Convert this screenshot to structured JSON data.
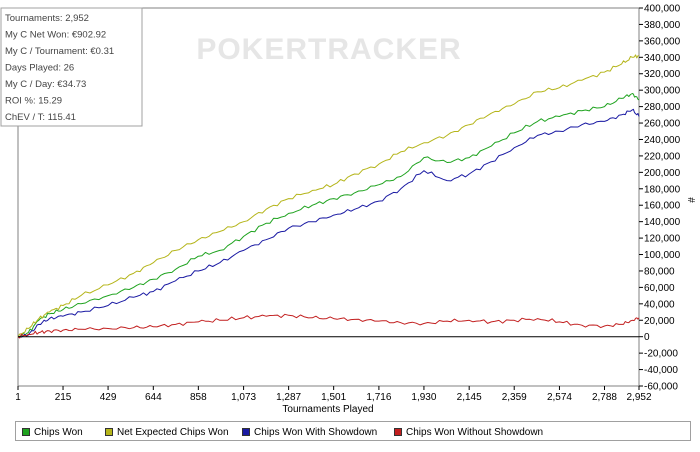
{
  "watermark": "POKERTRACKER",
  "stats_box": {
    "lines": [
      "Tournaments: 2,952",
      "My C Net Won: €902.92",
      "My C / Tournament: €0.31",
      "Days Played: 26",
      "My C / Day: €34.73",
      "ROI %: 15.29",
      "ChEV / T: 115.41"
    ]
  },
  "chart_data": {
    "type": "line",
    "xlabel": "Tournaments Played",
    "ylabel": "#",
    "xlim": [
      1,
      2952
    ],
    "ylim": [
      -60000,
      400000
    ],
    "x_ticks": [
      1,
      215,
      429,
      644,
      858,
      1073,
      1287,
      1501,
      1716,
      1930,
      2145,
      2359,
      2574,
      2788,
      2952
    ],
    "x_tick_labels": [
      "1",
      "215",
      "429",
      "644",
      "858",
      "1,073",
      "1,287",
      "1,501",
      "1,716",
      "1,930",
      "2,145",
      "2,359",
      "2,574",
      "2,788",
      "2,952"
    ],
    "y_ticks": [
      -60000,
      -40000,
      -20000,
      0,
      20000,
      40000,
      60000,
      80000,
      100000,
      120000,
      140000,
      160000,
      180000,
      200000,
      220000,
      240000,
      260000,
      280000,
      300000,
      320000,
      340000,
      360000,
      380000,
      400000
    ],
    "y_tick_labels": [
      "-60,000",
      "-40,000",
      "-20,000",
      "0",
      "20,000",
      "40,000",
      "60,000",
      "80,000",
      "100,000",
      "120,000",
      "140,000",
      "160,000",
      "180,000",
      "200,000",
      "220,000",
      "240,000",
      "260,000",
      "280,000",
      "300,000",
      "320,000",
      "340,000",
      "360,000",
      "380,000",
      "400,000"
    ],
    "grid": false,
    "legend_position": "bottom",
    "series": [
      {
        "name": "Chips Won",
        "color": "#1fa31f",
        "x": [
          1,
          50,
          100,
          150,
          215,
          300,
          429,
          550,
          644,
          750,
          858,
          960,
          1073,
          1180,
          1287,
          1400,
          1501,
          1600,
          1716,
          1820,
          1930,
          2040,
          2145,
          2250,
          2359,
          2470,
          2574,
          2680,
          2788,
          2870,
          2920,
          2952
        ],
        "y": [
          0,
          5000,
          20000,
          28000,
          33000,
          40000,
          50000,
          60000,
          70000,
          82000,
          98000,
          105000,
          122000,
          138000,
          150000,
          160000,
          168000,
          175000,
          185000,
          195000,
          218000,
          212000,
          218000,
          232000,
          248000,
          262000,
          268000,
          275000,
          280000,
          290000,
          296000,
          288000
        ]
      },
      {
        "name": "Net Expected Chips Won",
        "color": "#b5b51a",
        "x": [
          1,
          50,
          100,
          150,
          215,
          300,
          429,
          550,
          644,
          750,
          858,
          960,
          1073,
          1180,
          1287,
          1400,
          1501,
          1600,
          1716,
          1820,
          1930,
          2040,
          2145,
          2250,
          2359,
          2470,
          2574,
          2680,
          2788,
          2870,
          2920,
          2952
        ],
        "y": [
          0,
          10000,
          22000,
          30000,
          38000,
          50000,
          63000,
          77000,
          90000,
          105000,
          118000,
          128000,
          140000,
          155000,
          168000,
          178000,
          185000,
          198000,
          210000,
          225000,
          236000,
          245000,
          258000,
          272000,
          283000,
          298000,
          303000,
          312000,
          322000,
          332000,
          340000,
          342000
        ]
      },
      {
        "name": "Chips Won With Showdown",
        "color": "#1a1aa3",
        "x": [
          1,
          50,
          100,
          150,
          215,
          300,
          429,
          550,
          644,
          750,
          858,
          960,
          1073,
          1180,
          1287,
          1400,
          1501,
          1600,
          1716,
          1820,
          1930,
          2040,
          2145,
          2250,
          2359,
          2470,
          2574,
          2680,
          2788,
          2870,
          2920,
          2952
        ],
        "y": [
          0,
          2000,
          15000,
          22000,
          25000,
          30000,
          38000,
          48000,
          55000,
          68000,
          80000,
          90000,
          105000,
          118000,
          132000,
          140000,
          148000,
          155000,
          165000,
          180000,
          202000,
          190000,
          198000,
          213000,
          230000,
          245000,
          250000,
          258000,
          262000,
          270000,
          276000,
          268000
        ]
      },
      {
        "name": "Chips Won Without Showdown",
        "color": "#c21f1f",
        "x": [
          1,
          50,
          100,
          150,
          215,
          300,
          429,
          550,
          644,
          750,
          858,
          960,
          1073,
          1180,
          1287,
          1400,
          1501,
          1600,
          1716,
          1820,
          1930,
          2040,
          2145,
          2250,
          2359,
          2470,
          2574,
          2680,
          2788,
          2870,
          2920,
          2952
        ],
        "y": [
          0,
          3000,
          5000,
          7000,
          8000,
          9000,
          10000,
          11000,
          12000,
          15000,
          18000,
          20000,
          23000,
          25000,
          26000,
          23000,
          22000,
          21000,
          19000,
          17000,
          16000,
          19000,
          20000,
          18000,
          20000,
          22000,
          18000,
          14000,
          13000,
          15000,
          20000,
          23000
        ]
      }
    ]
  }
}
